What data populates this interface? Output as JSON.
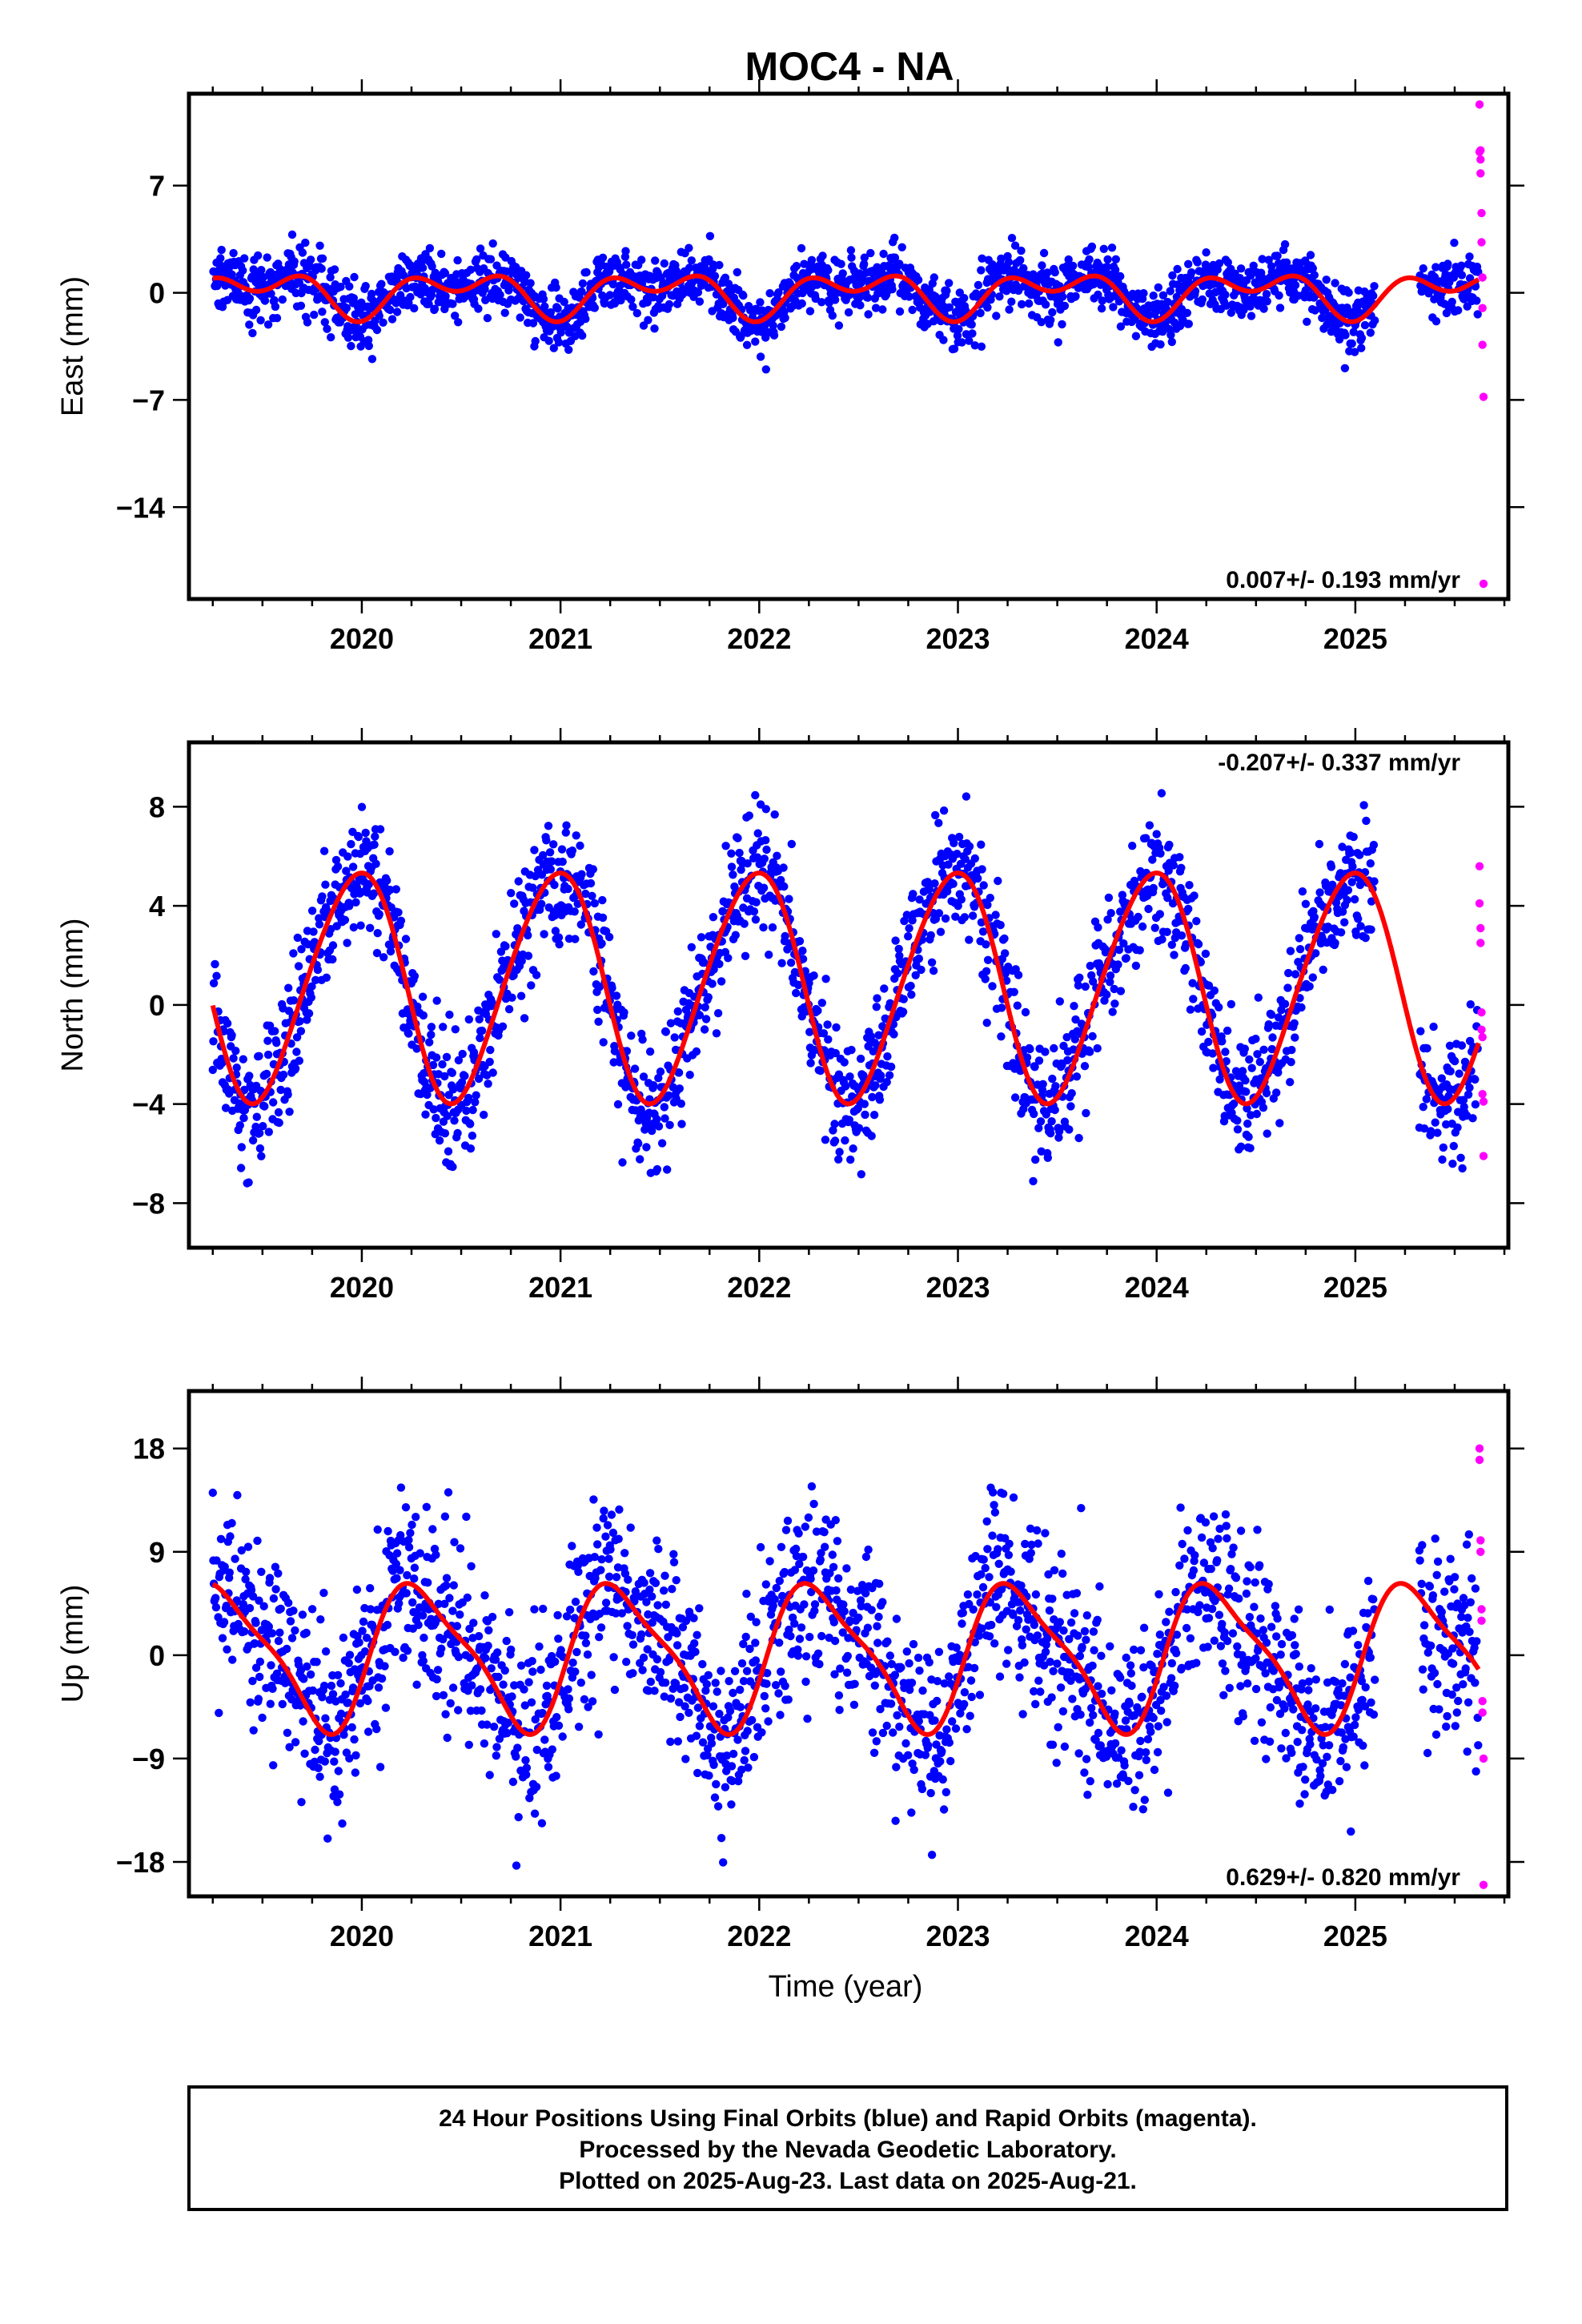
{
  "title": "MOC4 - NA",
  "xlabel": "Time (year)",
  "caption": {
    "line1": "24 Hour Positions Using Final Orbits (blue) and Rapid Orbits (magenta).",
    "line2": "Processed by the Nevada Geodetic Laboratory.",
    "line3": "Plotted on 2025-Aug-23. Last data on 2025-Aug-21."
  },
  "colors": {
    "final": "#0000ff",
    "rapid": "#ff00ff",
    "model": "#ff0000"
  },
  "chart_data": [
    {
      "type": "scatter",
      "ylabel": "East (mm)",
      "xlim": [
        2019.13,
        2025.77
      ],
      "ylim": [
        -20.0,
        13.0
      ],
      "xticks": [
        2020,
        2021,
        2022,
        2023,
        2024,
        2025
      ],
      "yticks": [
        7,
        0,
        -7,
        -14
      ],
      "rate_text": "0.007+/- 0.193 mm/yr",
      "rate_position": "bottom-right",
      "series": [
        {
          "role": "final",
          "x_range": [
            2019.25,
            2025.62
          ],
          "mean": 0.0,
          "annual_amp": 1.0,
          "annual_phase": -1.5,
          "semiannual_amp": 0.9,
          "semiannual_phase": -1.3,
          "scatter": 1.0,
          "gaps": [
            [
              2025.1,
              2025.32
            ]
          ]
        },
        {
          "role": "rapid",
          "x": [
            2025.625,
            2025.625,
            2025.63,
            2025.63,
            2025.63,
            2025.635,
            2025.635,
            2025.64,
            2025.64,
            2025.64,
            2025.645,
            2025.645
          ],
          "y": [
            12.3,
            9.2,
            9.3,
            8.7,
            7.8,
            5.2,
            3.3,
            1.0,
            -1.0,
            -3.4,
            -6.8,
            -19.0
          ]
        }
      ],
      "model": {
        "mean": 0.0,
        "annual_amp": 1.0,
        "annual_phase": -1.5,
        "semiannual_amp": 0.9,
        "semiannual_phase": -1.3
      }
    },
    {
      "type": "scatter",
      "ylabel": "North (mm)",
      "xlim": [
        2019.13,
        2025.77
      ],
      "ylim": [
        -9.8,
        10.6
      ],
      "xticks": [
        2020,
        2021,
        2022,
        2023,
        2024,
        2025
      ],
      "yticks": [
        8,
        4,
        0,
        -4,
        -8
      ],
      "rate_text": "-0.207+/- 0.337 mm/yr",
      "rate_position": "top-right",
      "series": [
        {
          "role": "final",
          "x_range": [
            2019.25,
            2025.62
          ],
          "mean": 0.8,
          "annual_amp": 4.6,
          "annual_phase": 1.75,
          "semiannual_amp": 0.4,
          "semiannual_phase": 0.0,
          "scatter": 1.3,
          "gaps": [
            [
              2025.1,
              2025.32
            ]
          ]
        },
        {
          "role": "rapid",
          "x": [
            2025.625,
            2025.625,
            2025.63,
            2025.63,
            2025.635,
            2025.635,
            2025.64,
            2025.64,
            2025.645,
            2025.645
          ],
          "y": [
            5.6,
            4.1,
            3.1,
            2.5,
            -0.3,
            -1.0,
            -1.3,
            -3.6,
            -3.9,
            -6.1
          ]
        }
      ],
      "model": {
        "mean": 0.8,
        "annual_amp": 4.6,
        "annual_phase": 1.75,
        "semiannual_amp": 0.4,
        "semiannual_phase": 0.0
      }
    },
    {
      "type": "scatter",
      "ylabel": "Up (mm)",
      "xlim": [
        2019.13,
        2025.77
      ],
      "ylim": [
        -21.0,
        23.0
      ],
      "xticks": [
        2020,
        2021,
        2022,
        2023,
        2024,
        2025
      ],
      "yticks": [
        18,
        9,
        0,
        -9,
        -18
      ],
      "rate_text": "0.629+/- 0.820 mm/yr",
      "rate_position": "bottom-right",
      "series": [
        {
          "role": "final",
          "x_range": [
            2019.25,
            2025.62
          ],
          "mean": 0.0,
          "annual_amp": 6.0,
          "annual_phase": -0.3,
          "semiannual_amp": 1.5,
          "semiannual_phase": -0.3,
          "scatter": 4.0,
          "gaps": [
            [
              2025.1,
              2025.32
            ]
          ]
        },
        {
          "role": "rapid",
          "x": [
            2025.625,
            2025.625,
            2025.63,
            2025.63,
            2025.635,
            2025.635,
            2025.64,
            2025.64,
            2025.645,
            2025.645
          ],
          "y": [
            18.0,
            17.0,
            10.0,
            9.0,
            4.0,
            3.0,
            -4.0,
            -5.0,
            -9.0,
            -20.0
          ]
        }
      ],
      "model": {
        "mean": 0.0,
        "annual_amp": 6.0,
        "annual_phase": -0.3,
        "semiannual_amp": 1.5,
        "semiannual_phase": -0.3
      }
    }
  ]
}
